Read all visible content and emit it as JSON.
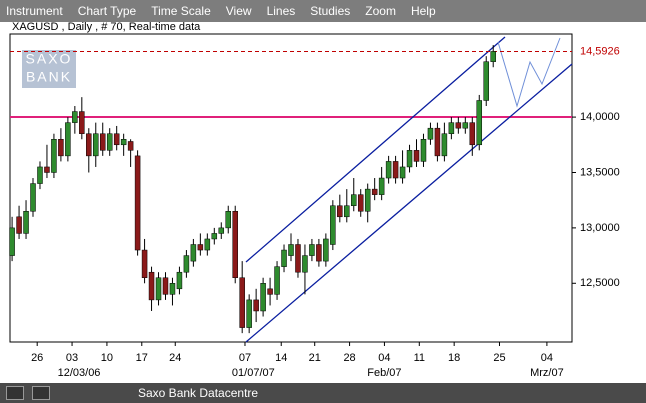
{
  "menu": [
    "Instrument",
    "Chart Type",
    "Time Scale",
    "View",
    "Lines",
    "Studies",
    "Zoom",
    "Help"
  ],
  "watermark": [
    "SAXO",
    "BANK"
  ],
  "status": "Saxo Bank Datacentre",
  "chart_data": {
    "type": "candlestick",
    "title": "XAGUSD , Daily , # 70, Real-time data",
    "up_color": "#2e8b2e",
    "down_color": "#8b1a1a",
    "open": [
      12.75,
      13.1,
      12.95,
      13.15,
      13.4,
      13.55,
      13.5,
      13.8,
      13.65,
      13.95,
      14.05,
      13.85,
      13.65,
      13.85,
      13.7,
      13.85,
      13.75,
      13.78,
      13.65,
      12.8,
      12.6,
      12.35,
      12.55,
      12.4,
      12.45,
      12.6,
      12.7,
      12.85,
      12.8,
      12.9,
      12.95,
      13.0,
      13.15,
      12.55,
      12.1,
      12.35,
      12.25,
      12.45,
      12.4,
      12.65,
      12.75,
      12.85,
      12.6,
      12.75,
      12.85,
      12.7,
      12.85,
      13.2,
      13.1,
      13.2,
      13.3,
      13.15,
      13.35,
      13.3,
      13.45,
      13.6,
      13.45,
      13.55,
      13.7,
      13.6,
      13.8,
      13.9,
      13.65,
      13.85,
      13.95,
      13.9,
      13.95,
      13.75,
      14.15,
      14.5
    ],
    "high": [
      13.1,
      13.2,
      13.25,
      13.45,
      13.6,
      13.75,
      13.85,
      13.9,
      14.0,
      14.1,
      14.18,
      13.9,
      13.95,
      13.95,
      13.9,
      13.92,
      13.85,
      13.8,
      13.7,
      12.9,
      12.65,
      12.6,
      12.6,
      12.55,
      12.65,
      12.8,
      12.9,
      12.95,
      12.95,
      13.0,
      13.05,
      13.2,
      13.2,
      12.7,
      12.4,
      12.45,
      12.55,
      12.55,
      12.7,
      12.85,
      12.95,
      12.9,
      12.85,
      12.9,
      12.9,
      12.95,
      13.25,
      13.3,
      13.35,
      13.45,
      13.35,
      13.4,
      13.45,
      13.55,
      13.65,
      13.65,
      13.7,
      13.75,
      13.8,
      13.85,
      13.95,
      13.95,
      13.95,
      14.0,
      14.0,
      14.0,
      14.0,
      14.2,
      14.55,
      14.65
    ],
    "low": [
      12.7,
      12.9,
      12.9,
      13.1,
      13.35,
      13.45,
      13.45,
      13.6,
      13.6,
      13.85,
      13.8,
      13.5,
      13.55,
      13.65,
      13.65,
      13.7,
      13.65,
      13.55,
      12.75,
      12.5,
      12.25,
      12.3,
      12.35,
      12.3,
      12.4,
      12.55,
      12.65,
      12.75,
      12.75,
      12.85,
      12.9,
      12.95,
      12.5,
      12.05,
      12.05,
      12.15,
      12.2,
      12.3,
      12.35,
      12.6,
      12.7,
      12.55,
      12.4,
      12.7,
      12.65,
      12.65,
      12.8,
      13.05,
      13.05,
      13.15,
      13.1,
      13.05,
      13.25,
      13.25,
      13.4,
      13.4,
      13.4,
      13.5,
      13.55,
      13.55,
      13.75,
      13.6,
      13.6,
      13.8,
      13.85,
      13.85,
      13.65,
      13.7,
      14.1,
      14.45
    ],
    "close": [
      13.0,
      12.95,
      13.15,
      13.4,
      13.55,
      13.5,
      13.8,
      13.65,
      13.95,
      14.05,
      13.85,
      13.65,
      13.85,
      13.7,
      13.85,
      13.75,
      13.8,
      13.7,
      12.8,
      12.55,
      12.35,
      12.55,
      12.4,
      12.5,
      12.6,
      12.75,
      12.85,
      12.8,
      12.9,
      12.95,
      13.0,
      13.15,
      12.55,
      12.1,
      12.35,
      12.25,
      12.5,
      12.4,
      12.65,
      12.8,
      12.85,
      12.6,
      12.75,
      12.85,
      12.7,
      12.9,
      13.2,
      13.1,
      13.2,
      13.3,
      13.15,
      13.35,
      13.3,
      13.45,
      13.6,
      13.45,
      13.55,
      13.7,
      13.6,
      13.8,
      13.9,
      13.65,
      13.85,
      13.95,
      13.9,
      13.95,
      13.75,
      14.15,
      14.5,
      14.5926
    ],
    "ylim": [
      11.97,
      14.75
    ],
    "yticks": [
      {
        "value": 12.5,
        "label": "12,5000"
      },
      {
        "value": 13,
        "label": "13,0000"
      },
      {
        "value": 13.5,
        "label": "13,5000"
      },
      {
        "value": 14,
        "label": "14,0000"
      }
    ],
    "last_price": {
      "value": 14.5926,
      "label": "14,5926"
    },
    "xlim": [
      -0.3,
      80.3
    ],
    "xticks": [
      {
        "value": 3.6,
        "label": "26"
      },
      {
        "value": 8.6,
        "label": "03"
      },
      {
        "value": 13.6,
        "label": "10"
      },
      {
        "value": 18.6,
        "label": "17"
      },
      {
        "value": 23.4,
        "label": "24"
      },
      {
        "value": 33.4,
        "label": "07"
      },
      {
        "value": 38.6,
        "label": "14"
      },
      {
        "value": 43.4,
        "label": "21"
      },
      {
        "value": 48.4,
        "label": "28"
      },
      {
        "value": 53.4,
        "label": "04"
      },
      {
        "value": 58.4,
        "label": "11"
      },
      {
        "value": 63.4,
        "label": "18"
      },
      {
        "value": 69.9,
        "label": "25"
      },
      {
        "value": 76.7,
        "label": "04"
      }
    ],
    "xticks2": [
      {
        "value": 9.6,
        "label": "12/03/06"
      },
      {
        "value": 34.6,
        "label": "01/07/07"
      },
      {
        "value": 53.4,
        "label": "Feb/07"
      },
      {
        "value": 76.7,
        "label": "Mrz/07"
      }
    ]
  }
}
